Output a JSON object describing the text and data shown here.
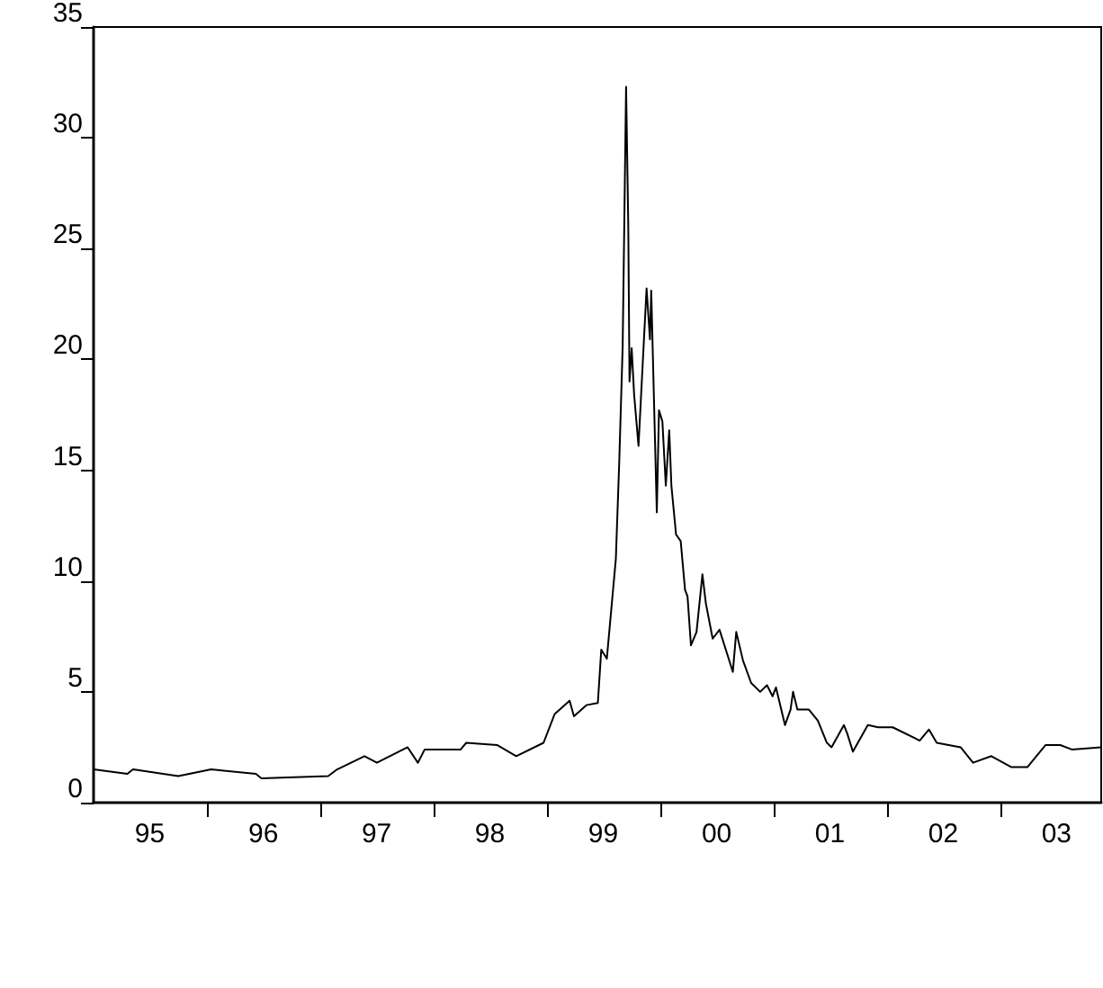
{
  "chart_data": {
    "type": "line",
    "x": [
      "1995-01-01",
      "1995-04-20",
      "1995-05-08",
      "1995-10-01",
      "1996-01-15",
      "1996-06-07",
      "1996-06-25",
      "1997-01-26",
      "1997-02-24",
      "1997-05-23",
      "1997-07-02",
      "1997-10-09",
      "1997-11-11",
      "1997-12-03",
      "1998-03-29",
      "1998-04-16",
      "1998-07-24",
      "1998-09-24",
      "1998-12-21",
      "1999-01-26",
      "1999-03-15",
      "1999-03-29",
      "1999-05-08",
      "1999-06-14",
      "1999-06-25",
      "1999-07-13",
      "1999-08-11",
      "1999-08-22",
      "1999-09-02",
      "1999-09-13",
      "1999-09-20",
      "1999-09-24",
      "1999-10-01",
      "1999-10-09",
      "1999-10-23",
      "1999-11-18",
      "1999-11-29",
      "1999-12-03",
      "1999-12-21",
      "1999-12-28",
      "2000-01-08",
      "2000-01-19",
      "2000-01-30",
      "2000-02-06",
      "2000-02-21",
      "2000-03-07",
      "2000-03-21",
      "2000-03-29",
      "2000-04-09",
      "2000-04-27",
      "2000-05-16",
      "2000-05-27",
      "2000-06-18",
      "2000-07-10",
      "2000-08-04",
      "2000-08-22",
      "2000-09-02",
      "2000-09-24",
      "2000-10-20",
      "2000-11-18",
      "2000-12-10",
      "2000-12-28",
      "2001-01-08",
      "2001-02-06",
      "2001-02-24",
      "2001-03-04",
      "2001-03-18",
      "2001-04-24",
      "2001-05-23",
      "2001-06-21",
      "2001-07-06",
      "2001-08-15",
      "2001-08-26",
      "2001-09-13",
      "2001-10-31",
      "2001-12-03",
      "2002-01-19",
      "2002-04-16",
      "2002-05-16",
      "2002-06-10",
      "2002-08-26",
      "2002-10-05",
      "2002-12-03",
      "2003-02-06",
      "2003-03-29",
      "2003-05-27",
      "2003-07-13",
      "2003-08-19",
      "2003-11-22"
    ],
    "series": [
      {
        "color": "#000000",
        "values": [
          1.5,
          1.3,
          1.5,
          1.2,
          1.5,
          1.3,
          1.1,
          1.2,
          1.5,
          2.1,
          1.8,
          2.5,
          1.8,
          2.4,
          2.4,
          2.7,
          2.6,
          2.1,
          2.7,
          4.0,
          4.6,
          3.9,
          4.4,
          4.5,
          6.9,
          6.5,
          11.0,
          15.4,
          20.6,
          32.3,
          26.1,
          19.0,
          20.5,
          18.4,
          16.1,
          23.2,
          20.9,
          23.1,
          13.1,
          17.7,
          17.2,
          14.3,
          16.8,
          14.3,
          12.1,
          11.8,
          9.6,
          9.3,
          7.1,
          7.7,
          10.3,
          9.0,
          7.4,
          7.8,
          6.7,
          5.9,
          7.7,
          6.4,
          5.4,
          5.0,
          5.3,
          4.8,
          5.2,
          3.5,
          4.2,
          5.0,
          4.2,
          4.2,
          3.7,
          2.7,
          2.5,
          3.5,
          3.1,
          2.3,
          3.5,
          3.4,
          3.4,
          2.8,
          3.3,
          2.7,
          2.5,
          1.8,
          2.1,
          1.6,
          1.6,
          2.6,
          2.6,
          2.4,
          2.5
        ]
      }
    ],
    "xlim": [
      "1995-01-01",
      "2003-11-22"
    ],
    "xticks": [
      {
        "value": "1995-07-01",
        "label": "95"
      },
      {
        "value": "1996-01-01",
        "label": null
      },
      {
        "value": "1996-07-01",
        "label": "96"
      },
      {
        "value": "1997-01-01",
        "label": null
      },
      {
        "value": "1997-07-01",
        "label": "97"
      },
      {
        "value": "1998-01-01",
        "label": null
      },
      {
        "value": "1998-07-01",
        "label": "98"
      },
      {
        "value": "1999-01-01",
        "label": null
      },
      {
        "value": "1999-07-01",
        "label": "99"
      },
      {
        "value": "2000-01-01",
        "label": null
      },
      {
        "value": "2000-07-01",
        "label": "00"
      },
      {
        "value": "2001-01-01",
        "label": null
      },
      {
        "value": "2001-07-01",
        "label": "01"
      },
      {
        "value": "2002-01-01",
        "label": null
      },
      {
        "value": "2002-07-01",
        "label": "02"
      },
      {
        "value": "2003-01-01",
        "label": null
      },
      {
        "value": "2003-07-01",
        "label": "03"
      }
    ],
    "ylim": [
      0,
      35
    ],
    "yticks": [
      0,
      5,
      10,
      15,
      20,
      25,
      30,
      35
    ],
    "marker": "none"
  }
}
